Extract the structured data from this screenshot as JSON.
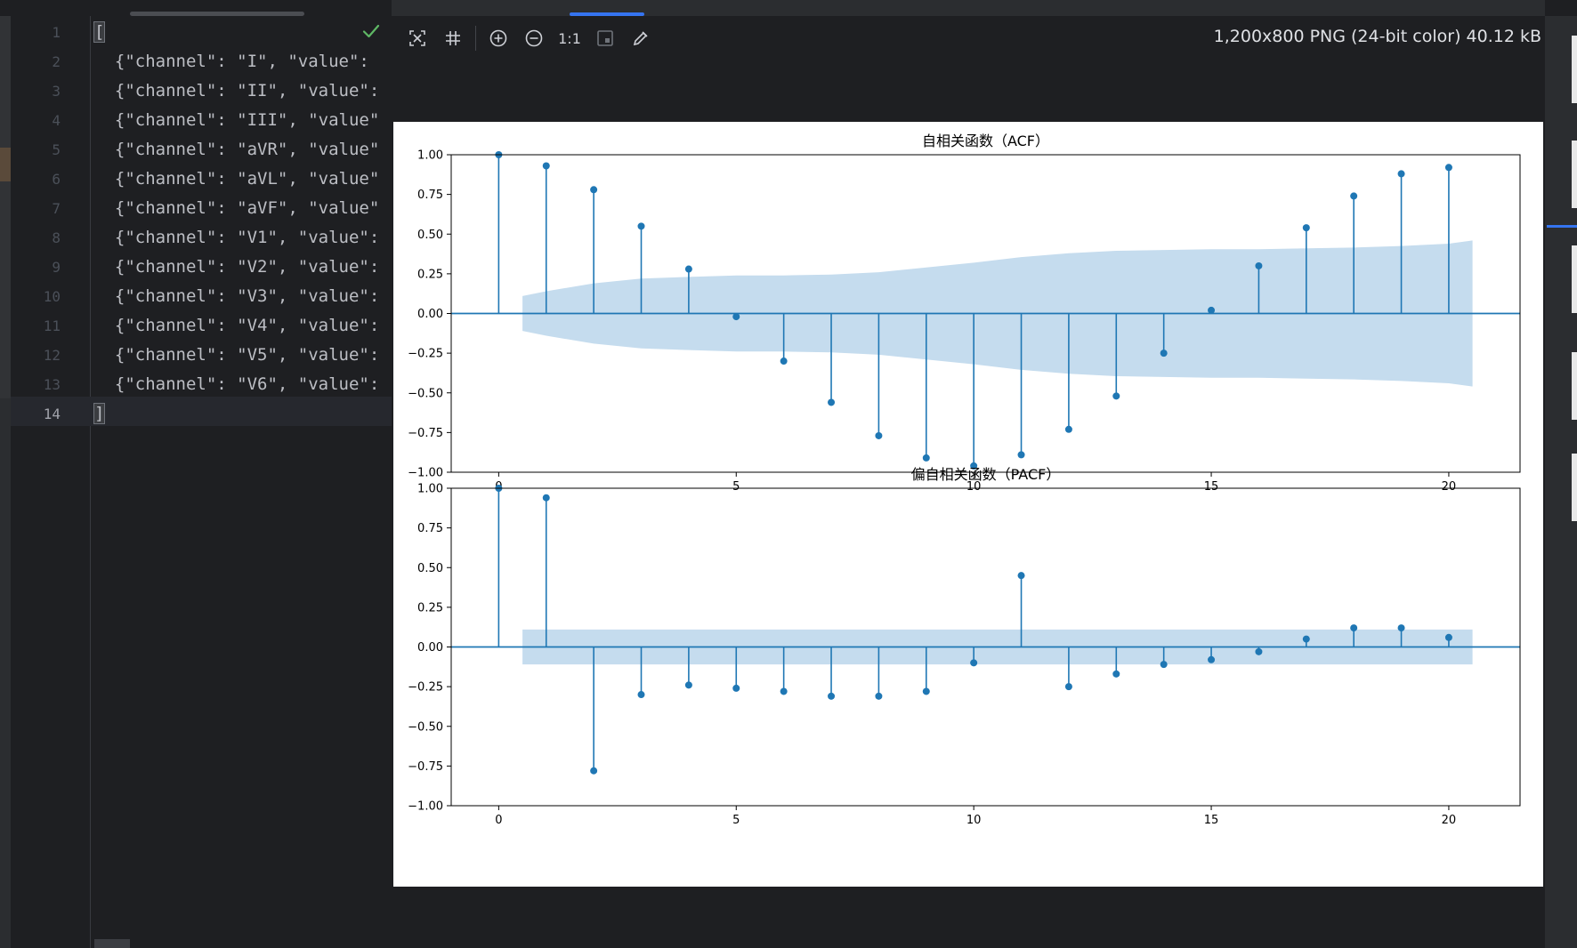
{
  "editor": {
    "lines": [
      {
        "n": "1",
        "text": "["
      },
      {
        "n": "2",
        "text": "  {\"channel\": \"I\", \"value\": "
      },
      {
        "n": "3",
        "text": "  {\"channel\": \"II\", \"value\":"
      },
      {
        "n": "4",
        "text": "  {\"channel\": \"III\", \"value\""
      },
      {
        "n": "5",
        "text": "  {\"channel\": \"aVR\", \"value\""
      },
      {
        "n": "6",
        "text": "  {\"channel\": \"aVL\", \"value\""
      },
      {
        "n": "7",
        "text": "  {\"channel\": \"aVF\", \"value\""
      },
      {
        "n": "8",
        "text": "  {\"channel\": \"V1\", \"value\":"
      },
      {
        "n": "9",
        "text": "  {\"channel\": \"V2\", \"value\":"
      },
      {
        "n": "10",
        "text": "  {\"channel\": \"V3\", \"value\":"
      },
      {
        "n": "11",
        "text": "  {\"channel\": \"V4\", \"value\":"
      },
      {
        "n": "12",
        "text": "  {\"channel\": \"V5\", \"value\":"
      },
      {
        "n": "13",
        "text": "  {\"channel\": \"V6\", \"value\":"
      },
      {
        "n": "14",
        "text": "]"
      }
    ],
    "active_line": 14,
    "status_icon": "check-icon",
    "accent": "#3574f0"
  },
  "viewer": {
    "toolbar": {
      "fit_icon": "fit-to-window-icon",
      "grid_icon": "grid-icon",
      "zoom_in_icon": "zoom-in-icon",
      "zoom_out_icon": "zoom-out-icon",
      "actual_size_label": "1:1",
      "background_icon": "chessboard-icon",
      "color_picker_icon": "color-picker-icon"
    },
    "info": "1,200x800 PNG (24-bit color) 40.12 kB"
  },
  "chart_data": [
    {
      "type": "stem",
      "title": "自相关函数（ACF）",
      "x": [
        0,
        1,
        2,
        3,
        4,
        5,
        6,
        7,
        8,
        9,
        10,
        11,
        12,
        13,
        14,
        15,
        16,
        17,
        18,
        19,
        20
      ],
      "values": [
        1.0,
        0.93,
        0.78,
        0.55,
        0.28,
        -0.02,
        -0.3,
        -0.56,
        -0.77,
        -0.91,
        -0.96,
        -0.89,
        -0.73,
        -0.52,
        -0.25,
        0.02,
        0.3,
        0.54,
        0.74,
        0.88,
        0.92
      ],
      "confidence_band": {
        "x": [
          0.5,
          1,
          2,
          3,
          4,
          5,
          6,
          7,
          8,
          9,
          10,
          11,
          12,
          13,
          14,
          15,
          16,
          17,
          18,
          19,
          20,
          20.5
        ],
        "upper": [
          0.11,
          0.14,
          0.19,
          0.22,
          0.23,
          0.24,
          0.24,
          0.245,
          0.26,
          0.29,
          0.32,
          0.355,
          0.38,
          0.395,
          0.4,
          0.405,
          0.405,
          0.41,
          0.415,
          0.425,
          0.44,
          0.46
        ],
        "lower": [
          -0.11,
          -0.14,
          -0.19,
          -0.22,
          -0.23,
          -0.24,
          -0.24,
          -0.245,
          -0.26,
          -0.29,
          -0.32,
          -0.355,
          -0.38,
          -0.395,
          -0.4,
          -0.405,
          -0.405,
          -0.41,
          -0.415,
          -0.425,
          -0.44,
          -0.46
        ]
      },
      "xlim": [
        -1,
        21.5
      ],
      "ylim": [
        -1.0,
        1.0
      ],
      "yticks": [
        "1.00",
        "0.75",
        "0.50",
        "0.25",
        "0.00",
        "−0.25",
        "−0.50",
        "−0.75",
        "−1.00"
      ],
      "xticks": [
        "0",
        "5",
        "10",
        "15",
        "20"
      ],
      "color": "#1f77b4",
      "band_color": "#c5dcee"
    },
    {
      "type": "stem",
      "title": "偏自相关函数（PACF）",
      "x": [
        0,
        1,
        2,
        3,
        4,
        5,
        6,
        7,
        8,
        9,
        10,
        11,
        12,
        13,
        14,
        15,
        16,
        17,
        18,
        19,
        20
      ],
      "values": [
        1.0,
        0.94,
        -0.78,
        -0.3,
        -0.24,
        -0.26,
        -0.28,
        -0.31,
        -0.31,
        -0.28,
        -0.1,
        0.45,
        -0.25,
        -0.17,
        -0.11,
        -0.08,
        -0.03,
        0.05,
        0.12,
        0.12,
        0.06
      ],
      "confidence_band": {
        "x": [
          0.5,
          20.5
        ],
        "upper": [
          0.11,
          0.11
        ],
        "lower": [
          -0.11,
          -0.11
        ]
      },
      "xlim": [
        -1,
        21.5
      ],
      "ylim": [
        -1.0,
        1.0
      ],
      "yticks": [
        "1.00",
        "0.75",
        "0.50",
        "0.25",
        "0.00",
        "−0.25",
        "−0.50",
        "−0.75",
        "−1.00"
      ],
      "xticks": [
        "0",
        "5",
        "10",
        "15",
        "20"
      ],
      "color": "#1f77b4",
      "band_color": "#c5dcee"
    }
  ]
}
